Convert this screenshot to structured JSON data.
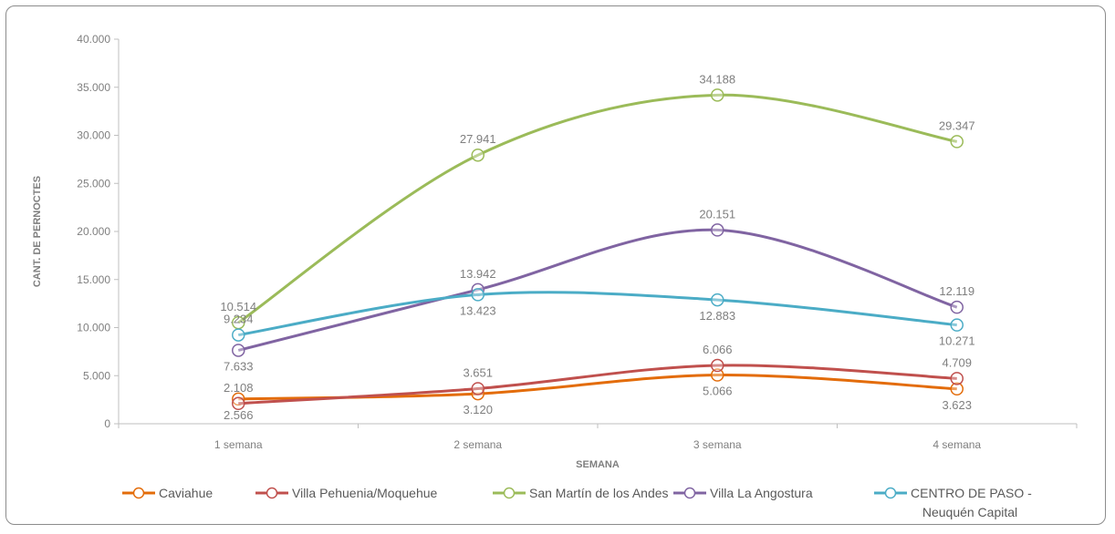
{
  "chart_data": {
    "type": "line",
    "title": "",
    "xlabel": "SEMANA",
    "ylabel": "CANT. DE PERNOCTES",
    "categories": [
      "1 semana",
      "2 semana",
      "3 semana",
      "4 semana"
    ],
    "ylim": [
      0,
      40000
    ],
    "yticks": [
      0,
      5000,
      10000,
      15000,
      20000,
      25000,
      30000,
      35000,
      40000
    ],
    "ytick_labels": [
      "0",
      "5.000",
      "10.000",
      "15.000",
      "20.000",
      "25.000",
      "30.000",
      "35.000",
      "40.000"
    ],
    "grid": false,
    "legend_position": "bottom",
    "smooth": true,
    "series": [
      {
        "name": "Caviahue",
        "color": "#e36c0a",
        "values": [
          2566,
          3120,
          5066,
          3623
        ],
        "labels": [
          "2.566",
          "3.120",
          "5.066",
          "3.623"
        ],
        "label_pos": [
          "below",
          "below",
          "below",
          "below"
        ]
      },
      {
        "name": "Villa Pehuenia/Moquehue",
        "color": "#c0504d",
        "values": [
          2108,
          3651,
          6066,
          4709
        ],
        "labels": [
          "2.108",
          "3.651",
          "6.066",
          "4.709"
        ],
        "label_pos": [
          "above",
          "above",
          "above",
          "above"
        ]
      },
      {
        "name": "San Martín de los Andes",
        "color": "#9bbb59",
        "values": [
          10514,
          27941,
          34188,
          29347
        ],
        "labels": [
          "10.514",
          "27.941",
          "34.188",
          "29.347"
        ],
        "label_pos": [
          "above",
          "above",
          "above",
          "above"
        ]
      },
      {
        "name": "Villa La Angostura",
        "color": "#8064a2",
        "values": [
          7633,
          13942,
          20151,
          12119
        ],
        "labels": [
          "7.633",
          "13.942",
          "20.151",
          "12.119"
        ],
        "label_pos": [
          "below",
          "above",
          "above",
          "above"
        ]
      },
      {
        "name": "CENTRO DE PASO - Neuquén Capital",
        "legend_lines": [
          "CENTRO DE PASO -",
          "Neuquén Capital"
        ],
        "color": "#4bacc6",
        "values": [
          9234,
          13423,
          12883,
          10271
        ],
        "labels": [
          "9.234",
          "13.423",
          "12.883",
          "10.271"
        ],
        "label_pos": [
          "above",
          "below",
          "below",
          "below"
        ]
      }
    ]
  }
}
